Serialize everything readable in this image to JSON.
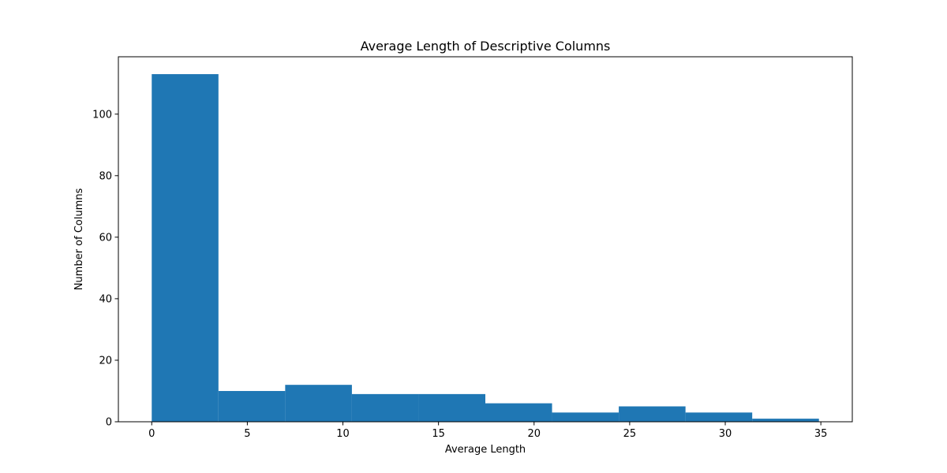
{
  "chart_data": {
    "type": "bar",
    "title": "Average Length of Descriptive Columns",
    "xlabel": "Average Length",
    "ylabel": "Number of Columns",
    "bin_edges": [
      0,
      3.49,
      6.98,
      10.47,
      13.96,
      17.45,
      20.94,
      24.43,
      27.92,
      31.41,
      34.9
    ],
    "values": [
      113,
      10,
      12,
      9,
      9,
      6,
      3,
      5,
      3,
      1
    ],
    "xlim": [
      -1.745,
      36.645
    ],
    "ylim": [
      0,
      118.65
    ],
    "x_ticks": [
      0,
      5,
      10,
      15,
      20,
      25,
      30,
      35
    ],
    "x_tick_labels": [
      "0",
      "5",
      "10",
      "15",
      "20",
      "25",
      "30",
      "35"
    ],
    "y_ticks": [
      0,
      20,
      40,
      60,
      80,
      100
    ],
    "y_tick_labels": [
      "0",
      "20",
      "40",
      "60",
      "80",
      "100"
    ],
    "bar_color": "#1f77b4",
    "grid": false,
    "legend": "none"
  }
}
